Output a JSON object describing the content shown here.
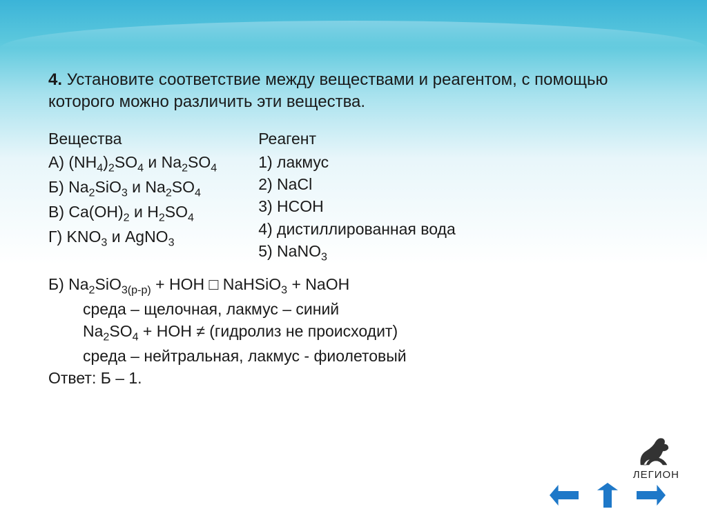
{
  "colors": {
    "bg_top": "#3bb4d8",
    "bg_mid": "#a8e2ee",
    "bg_bottom": "#ffffff",
    "text": "#1a1a1a",
    "arrow": "#1e78c8"
  },
  "task": {
    "number": "4.",
    "text": "Установите соответствие между веществами и реагентом, с помощью которого можно различить эти вещества."
  },
  "left": {
    "header": "Вещества",
    "items": [
      "А) (NH₄)₂SO₄  и   Na₂SO₄",
      "Б) Na₂SiO₃  и  Na₂SO₄",
      "В) Ca(OH)₂  и   H₂SO₄",
      "Г) KNO₃   и  AgNO₃"
    ]
  },
  "right": {
    "header": "Реагент",
    "items": [
      "1) лакмус",
      "2) NaCl",
      "3) HCOH",
      "4) дистиллированная вода",
      "5) NaNO₃"
    ]
  },
  "explain": {
    "line1": "Б) Na₂SiO₃(р-р) + HOH □ NaHSiO₃ + NaOH",
    "line2": "среда – щелочная,  лакмус – синий",
    "line3": "Na₂SO₄ + HOH ≠ (гидролиз не происходит)",
    "line4": "среда – нейтральная, лакмус - фиолетовый",
    "line5": "Ответ: Б – 1."
  },
  "logo_text": "ЛЕГИОН"
}
